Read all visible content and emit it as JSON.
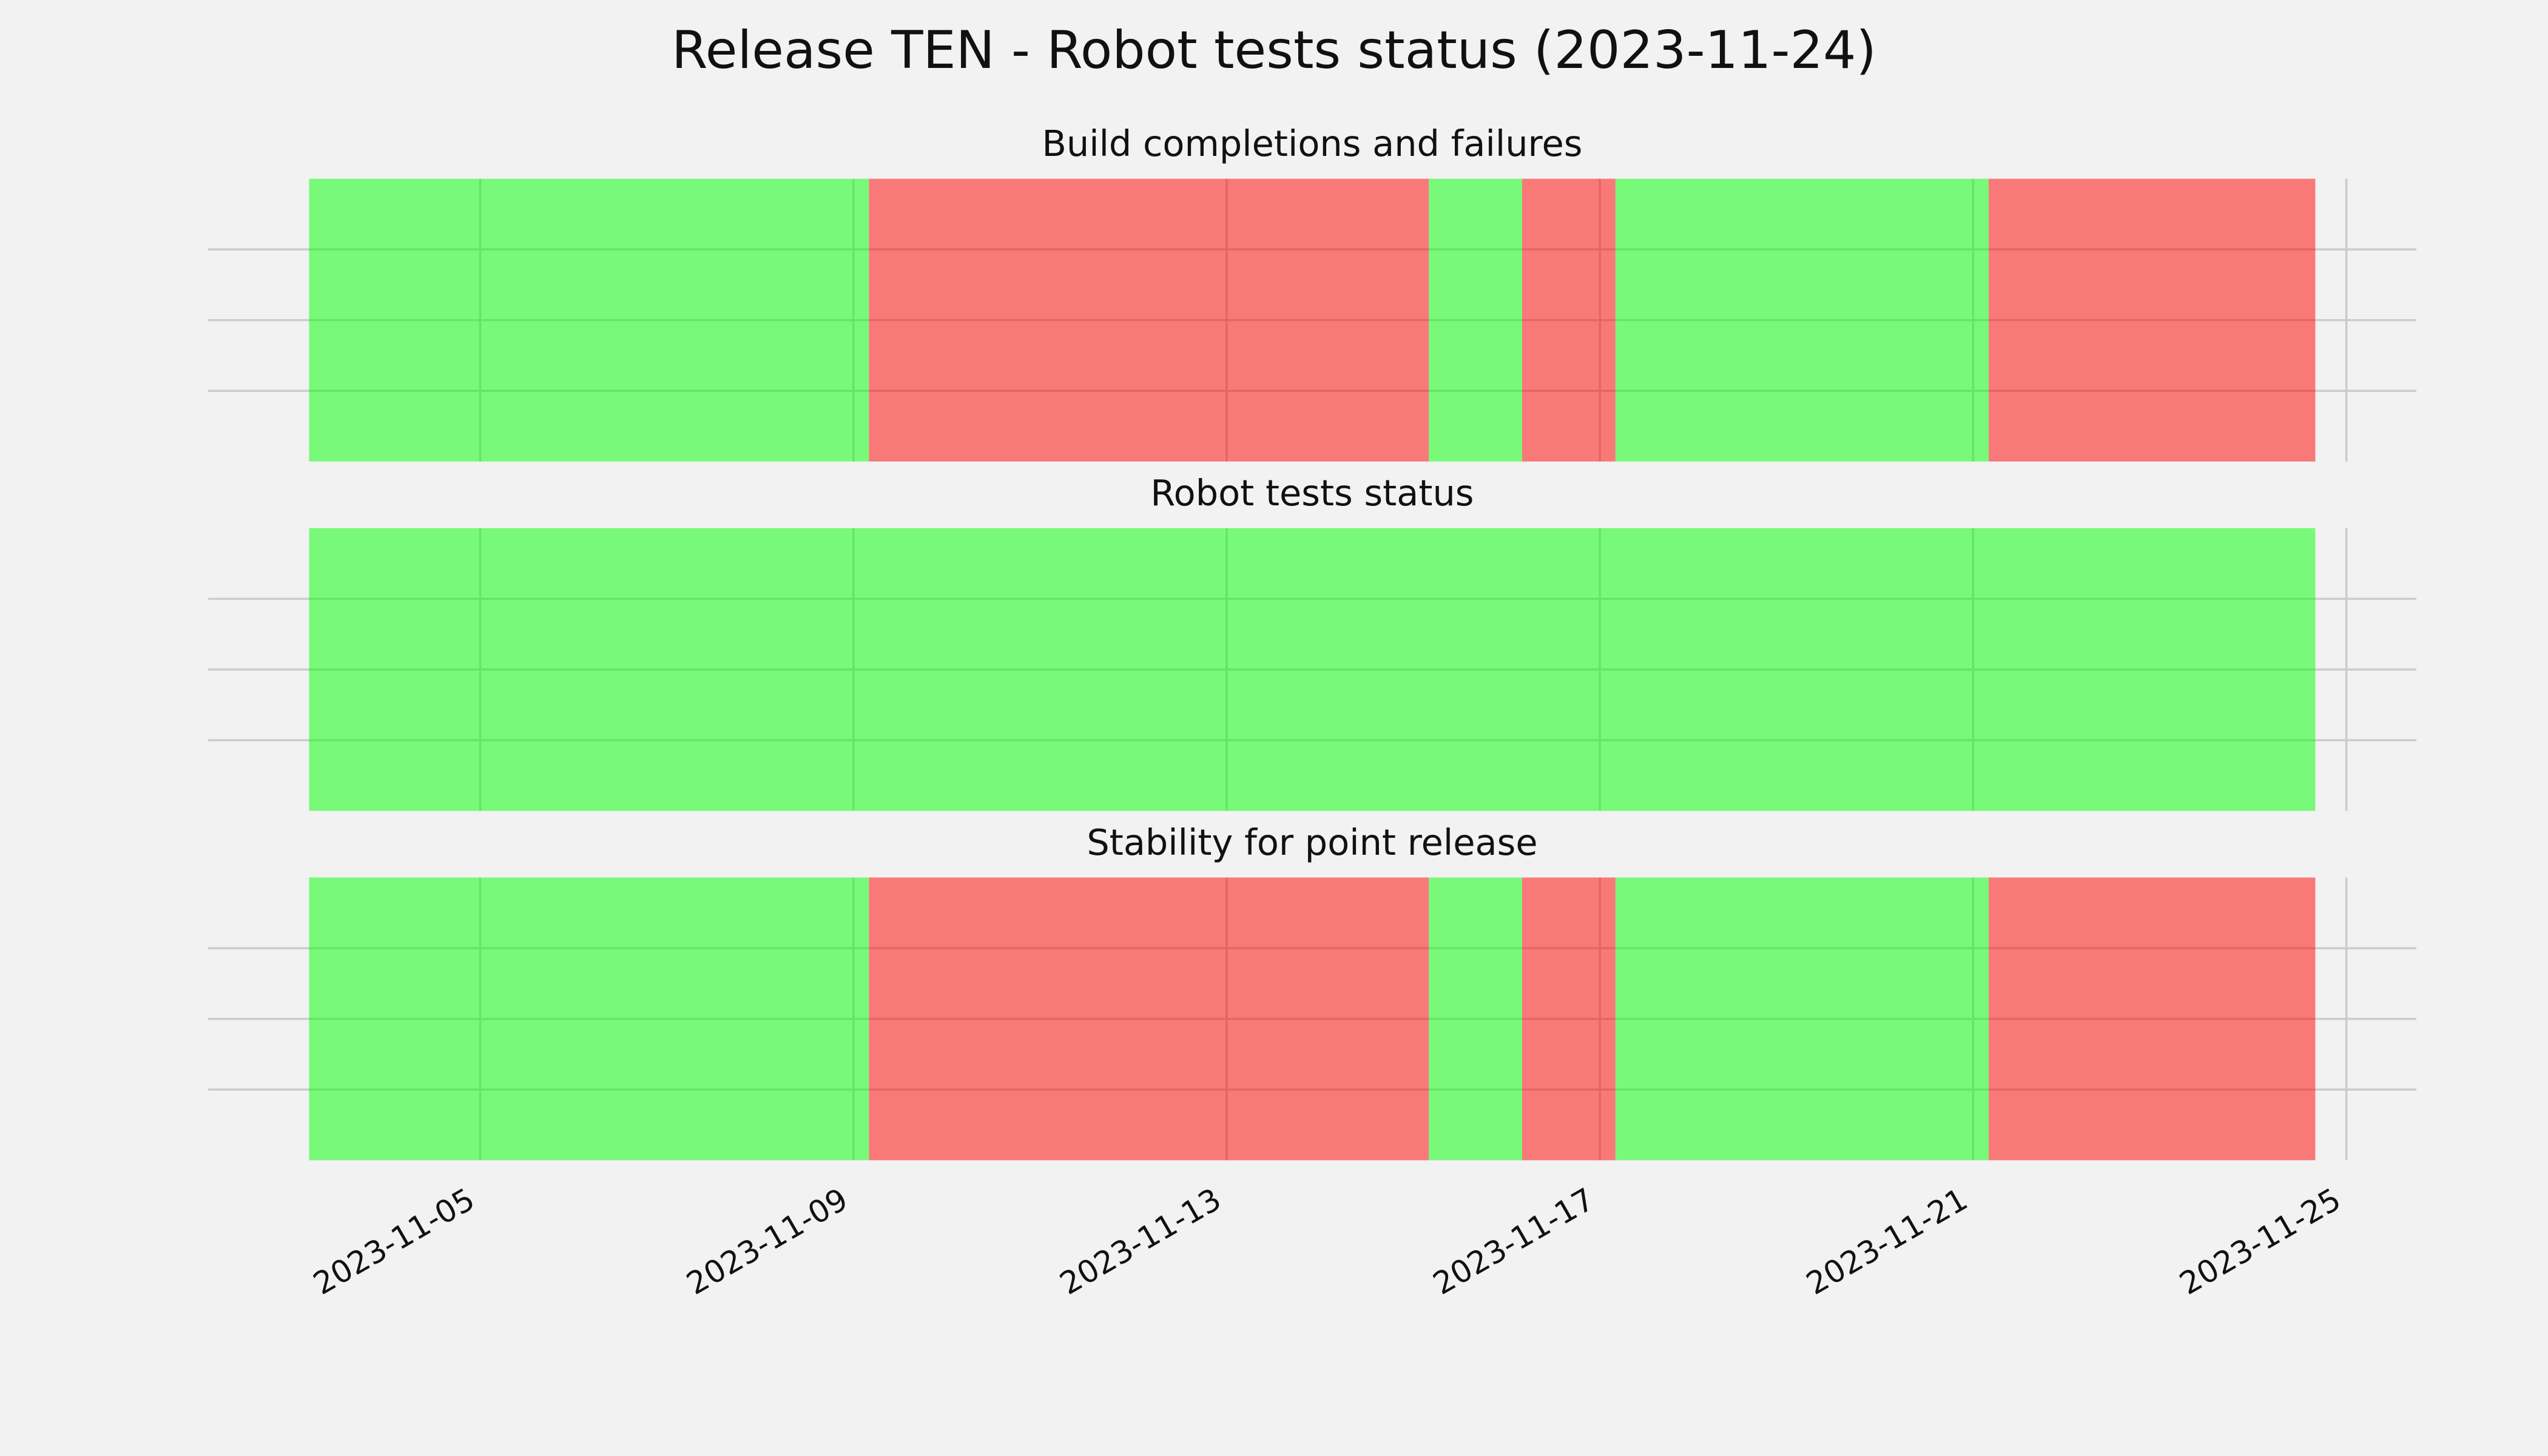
{
  "title": "Release TEN - Robot tests status (2023-11-24)",
  "chart_data": [
    {
      "type": "timeline",
      "title": "Build completions and failures",
      "xlim": [
        "2023-11-02T02:00",
        "2023-11-25T18:00"
      ],
      "xticks": [
        "2023-11-05",
        "2023-11-09",
        "2023-11-13",
        "2023-11-17",
        "2023-11-21",
        "2023-11-25"
      ],
      "ylim": [
        0,
        1
      ],
      "yticks": [
        0.25,
        0.5,
        0.75
      ],
      "grid": true,
      "alpha": 0.5,
      "spans": [
        {
          "start": "2023-11-03T04:00",
          "end": "2023-11-09T04:00",
          "color": "#00ff00"
        },
        {
          "start": "2023-11-09T04:00",
          "end": "2023-11-15T04:00",
          "color": "#ff0000"
        },
        {
          "start": "2023-11-15T04:00",
          "end": "2023-11-16T04:00",
          "color": "#00ff00"
        },
        {
          "start": "2023-11-16T04:00",
          "end": "2023-11-17T04:00",
          "color": "#ff0000"
        },
        {
          "start": "2023-11-17T04:00",
          "end": "2023-11-21T04:00",
          "color": "#00ff00"
        },
        {
          "start": "2023-11-21T04:00",
          "end": "2023-11-24T16:00",
          "color": "#ff0000"
        }
      ]
    },
    {
      "type": "timeline",
      "title": "Robot tests status",
      "xlim": [
        "2023-11-02T02:00",
        "2023-11-25T18:00"
      ],
      "xticks": [
        "2023-11-05",
        "2023-11-09",
        "2023-11-13",
        "2023-11-17",
        "2023-11-21",
        "2023-11-25"
      ],
      "ylim": [
        0,
        1
      ],
      "yticks": [
        0.25,
        0.5,
        0.75
      ],
      "grid": true,
      "alpha": 0.5,
      "spans": [
        {
          "start": "2023-11-03T04:00",
          "end": "2023-11-24T16:00",
          "color": "#00ff00"
        }
      ]
    },
    {
      "type": "timeline",
      "title": "Stability for point release",
      "xlim": [
        "2023-11-02T02:00",
        "2023-11-25T18:00"
      ],
      "xticks": [
        "2023-11-05",
        "2023-11-09",
        "2023-11-13",
        "2023-11-17",
        "2023-11-21",
        "2023-11-25"
      ],
      "ylim": [
        0,
        1
      ],
      "yticks": [
        0.25,
        0.5,
        0.75
      ],
      "grid": true,
      "alpha": 0.5,
      "show_xtick_labels": true,
      "spans": [
        {
          "start": "2023-11-03T04:00",
          "end": "2023-11-09T04:00",
          "color": "#00ff00"
        },
        {
          "start": "2023-11-09T04:00",
          "end": "2023-11-15T04:00",
          "color": "#ff0000"
        },
        {
          "start": "2023-11-15T04:00",
          "end": "2023-11-16T04:00",
          "color": "#00ff00"
        },
        {
          "start": "2023-11-16T04:00",
          "end": "2023-11-17T04:00",
          "color": "#ff0000"
        },
        {
          "start": "2023-11-17T04:00",
          "end": "2023-11-21T04:00",
          "color": "#00ff00"
        },
        {
          "start": "2023-11-21T04:00",
          "end": "2023-11-24T16:00",
          "color": "#ff0000"
        }
      ]
    }
  ]
}
